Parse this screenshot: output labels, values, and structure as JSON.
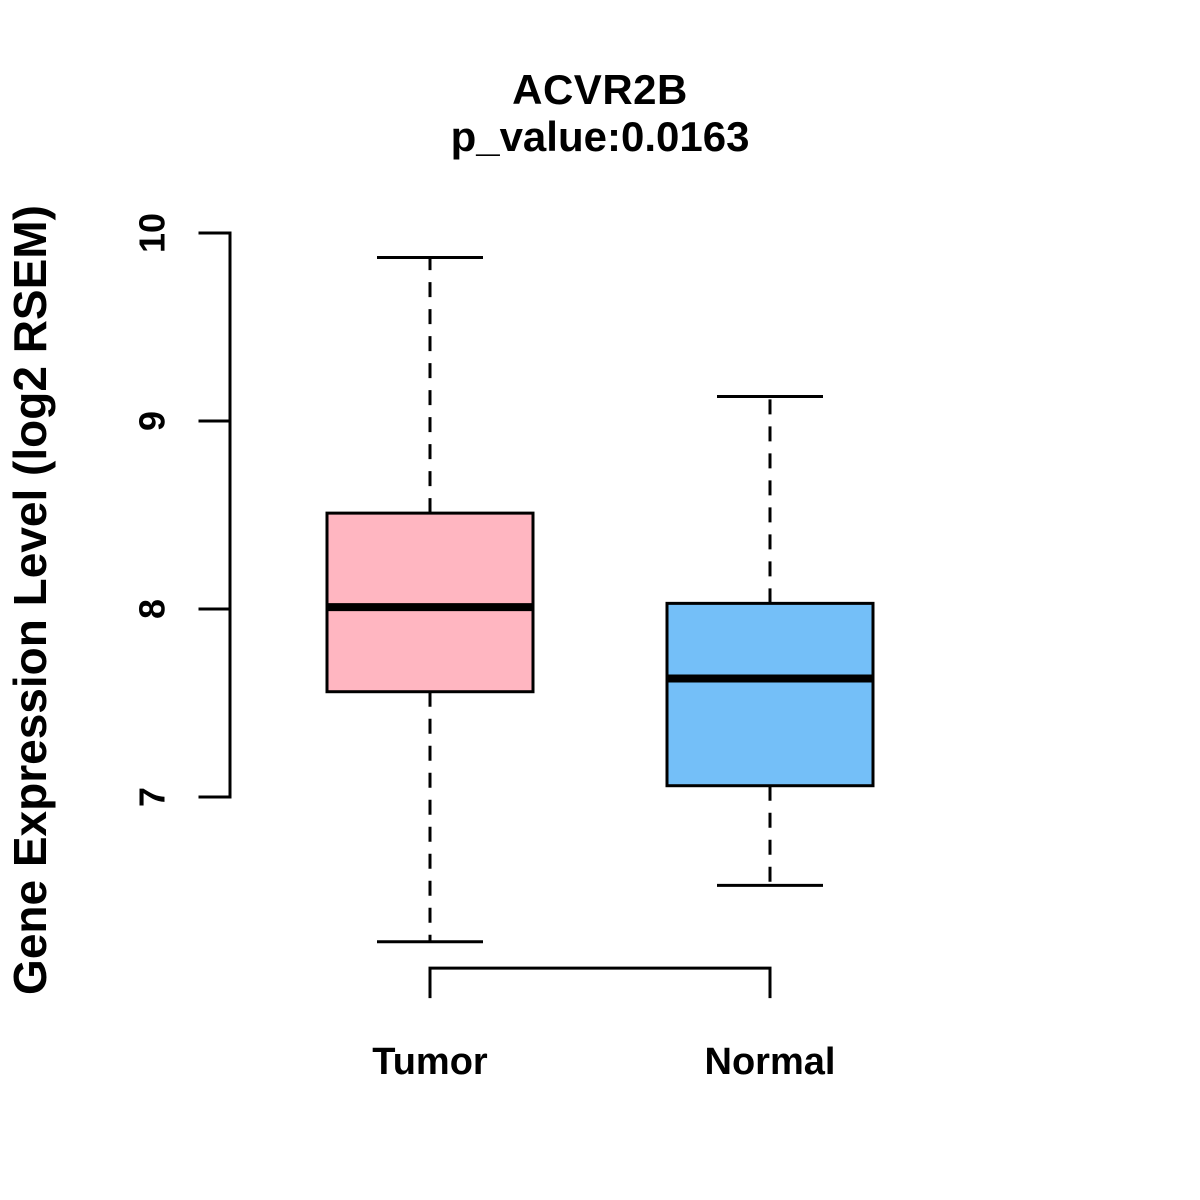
{
  "chart_data": {
    "type": "boxplot",
    "title": "ACVR2B",
    "subtitle": "p_value:0.0163",
    "ylabel": "Gene Expression Level (log2 RSEM)",
    "xlabel": "",
    "yticks": [
      7,
      8,
      9,
      10
    ],
    "ylim": [
      5.9,
      10.05
    ],
    "grid": false,
    "legend": "none",
    "groups": [
      {
        "label": "Tumor",
        "fill_color": "#FFB6C1",
        "whisker_low": 6.23,
        "q1": 7.56,
        "median": 8.01,
        "q3": 8.51,
        "whisker_high": 9.87
      },
      {
        "label": "Normal",
        "fill_color": "#74BFF8",
        "whisker_low": 6.53,
        "q1": 7.06,
        "median": 7.63,
        "q3": 8.03,
        "whisker_high": 9.13
      }
    ],
    "comparison_bracket": {
      "from": "Tumor",
      "to": "Normal",
      "y_value": 6.09
    }
  },
  "colors": {
    "stroke": "#000000",
    "background": "#FFFFFF"
  }
}
